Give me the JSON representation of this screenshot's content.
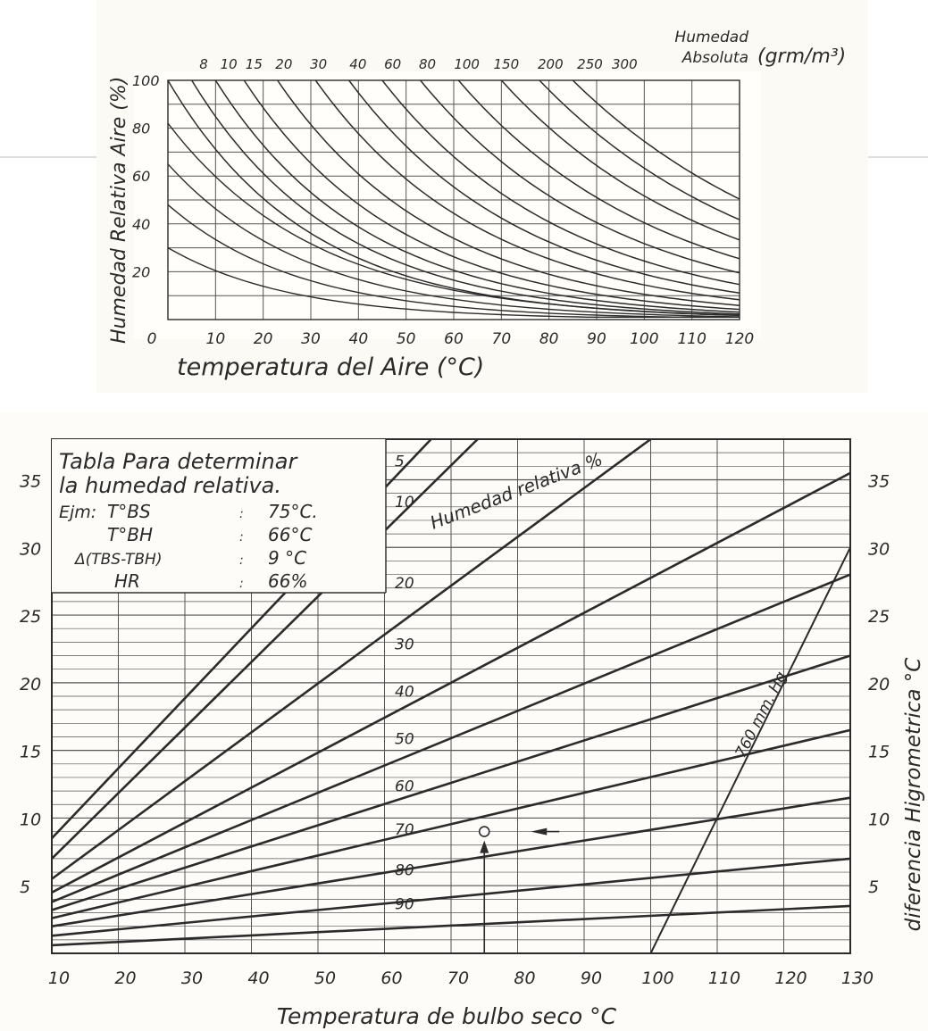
{
  "colors": {
    "ink": "#2b2b2b",
    "grid": "#555555",
    "paper": "#fbfaf5"
  },
  "chart_data": [
    {
      "type": "line",
      "title": "",
      "xlabel": "temperatura del Aire (°C)",
      "ylabel": "Humedad Relativa Aire (%)",
      "top_axis_title_1": "Humedad",
      "top_axis_title_2": "Absoluta",
      "top_axis_units": "(grm/m³)",
      "xlim": [
        0,
        120
      ],
      "ylim": [
        0,
        100
      ],
      "x_ticks": [
        "0",
        "10",
        "20",
        "30",
        "40",
        "50",
        "60",
        "70",
        "80",
        "90",
        "100",
        "110",
        "120"
      ],
      "y_ticks": [
        "20",
        "40",
        "60",
        "80",
        "100"
      ],
      "grid": true,
      "series": [
        {
          "label": "8",
          "start_x": 0
        },
        {
          "label": "10",
          "start_x": 5
        },
        {
          "label": "15",
          "start_x": 10
        },
        {
          "label": "20",
          "start_x": 16
        },
        {
          "label": "30",
          "start_x": 23
        },
        {
          "label": "40",
          "start_x": 31
        },
        {
          "label": "60",
          "start_x": 38
        },
        {
          "label": "80",
          "start_x": 45
        },
        {
          "label": "100",
          "start_x": 53
        },
        {
          "label": "150",
          "start_x": 61
        },
        {
          "label": "200",
          "start_x": 70
        },
        {
          "label": "250",
          "start_x": 78
        },
        {
          "label": "300",
          "start_x": 85
        }
      ]
    },
    {
      "type": "line",
      "title": "",
      "xlabel": "Temperatura de bulbo seco °C",
      "ylabel": "diferencia Higrometrica °C",
      "xlim": [
        10,
        130
      ],
      "ylim": [
        0,
        38
      ],
      "x_ticks": [
        "10",
        "20",
        "30",
        "40",
        "50",
        "60",
        "70",
        "80",
        "90",
        "100",
        "110",
        "120",
        "130"
      ],
      "y_ticks": [
        "5",
        "10",
        "15",
        "20",
        "25",
        "30",
        "35"
      ],
      "grid": true,
      "inset_title": [
        "Tabla Para determinar",
        "la humedad relativa."
      ],
      "example": [
        {
          "k": "Ejm:",
          "label": "T°BS",
          "value": "75°C."
        },
        {
          "k": "",
          "label": "T°BH",
          "value": "66°C"
        },
        {
          "k": "",
          "label": "Δ(TBS-TBH)",
          "value": "9 °C"
        },
        {
          "k": "",
          "label": "HR",
          "value": "66%"
        }
      ],
      "series_title": "Humedad relativa %",
      "pressure_label": "760 mm. Hg",
      "marker": {
        "x": 75,
        "y": 9
      },
      "series": [
        {
          "name": "5",
          "x": [
            10,
            67
          ],
          "y": [
            8.5,
            38
          ]
        },
        {
          "name": "10",
          "x": [
            10,
            74
          ],
          "y": [
            7,
            38
          ]
        },
        {
          "name": "20",
          "x": [
            10,
            100
          ],
          "y": [
            5.5,
            38
          ]
        },
        {
          "name": "30",
          "x": [
            10,
            130
          ],
          "y": [
            4.5,
            35.5
          ]
        },
        {
          "name": "40",
          "x": [
            10,
            130
          ],
          "y": [
            3.8,
            28
          ]
        },
        {
          "name": "50",
          "x": [
            10,
            130
          ],
          "y": [
            3.2,
            22
          ]
        },
        {
          "name": "60",
          "x": [
            10,
            130
          ],
          "y": [
            2.6,
            16.5
          ]
        },
        {
          "name": "70",
          "x": [
            10,
            130
          ],
          "y": [
            2.0,
            11.5
          ]
        },
        {
          "name": "80",
          "x": [
            10,
            130
          ],
          "y": [
            1.3,
            7.0
          ]
        },
        {
          "name": "90",
          "x": [
            10,
            130
          ],
          "y": [
            0.6,
            3.5
          ]
        },
        {
          "name": "760 mm. Hg",
          "x": [
            100,
            130
          ],
          "y": [
            0,
            30
          ]
        }
      ],
      "series_labels": [
        "5",
        "10",
        "20",
        "30",
        "40",
        "50",
        "60",
        "70",
        "80",
        "90"
      ]
    }
  ]
}
